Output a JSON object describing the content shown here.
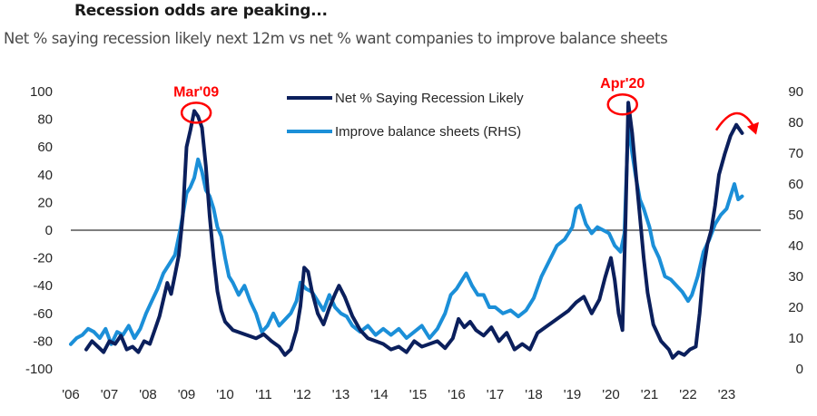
{
  "header": {
    "title": "Recession odds are peaking...",
    "subtitle": "Net % saying recession likely next 12m vs net % want companies to improve balance sheets"
  },
  "colors": {
    "recession_line": "#0b1f5c",
    "balance_line": "#1b8fd8",
    "annotation": "#ff0000",
    "zero_line": "#555555"
  },
  "chart_data": {
    "type": "line",
    "title": "Recession odds are peaking...",
    "subtitle": "Net % saying recession likely next 12m vs net % want companies to improve balance sheets",
    "xlabel": "",
    "ylabel_left": "",
    "ylabel_right": "",
    "x_ticks": [
      "'06",
      "'07",
      "'08",
      "'09",
      "'10",
      "'11",
      "'12",
      "'13",
      "'14",
      "'15",
      "'16",
      "'17",
      "'18",
      "'19",
      "'20",
      "'21",
      "'22",
      "'23"
    ],
    "x_tick_years": [
      2006,
      2007,
      2008,
      2009,
      2010,
      2011,
      2012,
      2013,
      2014,
      2015,
      2016,
      2017,
      2018,
      2019,
      2020,
      2021,
      2022,
      2023
    ],
    "xlim": [
      2006,
      2023.6
    ],
    "ylim_left": [
      -100,
      100
    ],
    "ylim_right": [
      0,
      90
    ],
    "y_ticks_left": [
      "100",
      "80",
      "60",
      "40",
      "20",
      "0",
      "-20",
      "-40",
      "-60",
      "-80",
      "-100"
    ],
    "y_tick_values_left": [
      100,
      80,
      60,
      40,
      20,
      0,
      -20,
      -40,
      -60,
      -80,
      -100
    ],
    "y_ticks_right": [
      "90",
      "80",
      "70",
      "60",
      "50",
      "40",
      "30",
      "20",
      "10",
      "0"
    ],
    "y_tick_values_right": [
      90,
      80,
      70,
      60,
      50,
      40,
      30,
      20,
      10,
      0
    ],
    "reference_line_left": 0,
    "grid": false,
    "legend": {
      "placement": "top-center",
      "entries": [
        {
          "label": "Net % Saying Recession Likely",
          "series": 0
        },
        {
          "label": "Improve balance sheets (RHS)",
          "series": 1
        }
      ]
    },
    "series": [
      {
        "name": "Net % Saying Recession Likely",
        "axis": "left",
        "x": [
          2006.4,
          2006.55,
          2006.7,
          2006.85,
          2007.0,
          2007.15,
          2007.3,
          2007.45,
          2007.6,
          2007.75,
          2007.9,
          2008.05,
          2008.2,
          2008.3,
          2008.4,
          2008.5,
          2008.6,
          2008.7,
          2008.8,
          2008.9,
          2009.0,
          2009.1,
          2009.2,
          2009.3,
          2009.4,
          2009.5,
          2009.6,
          2009.7,
          2009.8,
          2009.9,
          2010.0,
          2010.2,
          2010.4,
          2010.6,
          2010.8,
          2011.0,
          2011.2,
          2011.4,
          2011.55,
          2011.7,
          2011.85,
          2011.95,
          2012.05,
          2012.15,
          2012.25,
          2012.4,
          2012.55,
          2012.7,
          2012.85,
          2012.95,
          2013.1,
          2013.3,
          2013.5,
          2013.7,
          2013.9,
          2014.1,
          2014.3,
          2014.5,
          2014.7,
          2014.9,
          2015.1,
          2015.3,
          2015.5,
          2015.7,
          2015.9,
          2016.05,
          2016.2,
          2016.35,
          2016.5,
          2016.7,
          2016.9,
          2017.1,
          2017.3,
          2017.5,
          2017.7,
          2017.9,
          2018.1,
          2018.3,
          2018.5,
          2018.7,
          2018.9,
          2019.1,
          2019.3,
          2019.5,
          2019.7,
          2019.85,
          2020.0,
          2020.1,
          2020.2,
          2020.3,
          2020.38,
          2020.45,
          2020.55,
          2020.65,
          2020.75,
          2020.85,
          2020.95,
          2021.1,
          2021.3,
          2021.5,
          2021.6,
          2021.75,
          2021.9,
          2022.05,
          2022.2,
          2022.3,
          2022.4,
          2022.5,
          2022.6,
          2022.7,
          2022.8,
          2022.95,
          2023.1,
          2023.25,
          2023.4
        ],
        "y": [
          -86,
          -80,
          -84,
          -88,
          -80,
          -82,
          -76,
          -86,
          -84,
          -88,
          -80,
          -82,
          -70,
          -62,
          -50,
          -38,
          -46,
          -32,
          -18,
          10,
          60,
          72,
          86,
          82,
          74,
          46,
          10,
          -20,
          -44,
          -58,
          -66,
          -72,
          -74,
          -76,
          -78,
          -75,
          -80,
          -84,
          -90,
          -86,
          -72,
          -55,
          -27,
          -30,
          -44,
          -60,
          -68,
          -56,
          -46,
          -40,
          -48,
          -62,
          -72,
          -78,
          -80,
          -82,
          -86,
          -84,
          -88,
          -80,
          -84,
          -82,
          -80,
          -85,
          -78,
          -64,
          -70,
          -66,
          -72,
          -76,
          -70,
          -80,
          -74,
          -86,
          -82,
          -86,
          -74,
          -70,
          -66,
          -62,
          -58,
          -52,
          -48,
          -60,
          -50,
          -34,
          -20,
          -36,
          -60,
          -72,
          10,
          92,
          70,
          40,
          10,
          -20,
          -45,
          -68,
          -80,
          -86,
          -92,
          -88,
          -90,
          -86,
          -84,
          -60,
          -28,
          -10,
          0,
          18,
          40,
          55,
          68,
          76,
          70
        ]
      },
      {
        "name": "Improve balance sheets (RHS)",
        "axis": "right",
        "x": [
          2006.0,
          2006.15,
          2006.3,
          2006.45,
          2006.6,
          2006.75,
          2006.9,
          2007.05,
          2007.2,
          2007.35,
          2007.5,
          2007.65,
          2007.8,
          2007.95,
          2008.1,
          2008.25,
          2008.4,
          2008.55,
          2008.7,
          2008.85,
          2009.0,
          2009.1,
          2009.2,
          2009.3,
          2009.4,
          2009.5,
          2009.6,
          2009.7,
          2009.8,
          2009.9,
          2010.0,
          2010.1,
          2010.2,
          2010.35,
          2010.5,
          2010.65,
          2010.8,
          2010.95,
          2011.1,
          2011.25,
          2011.4,
          2011.55,
          2011.7,
          2011.85,
          2011.95,
          2012.1,
          2012.25,
          2012.4,
          2012.55,
          2012.7,
          2012.85,
          2013.0,
          2013.15,
          2013.3,
          2013.5,
          2013.7,
          2013.9,
          2014.1,
          2014.3,
          2014.5,
          2014.7,
          2014.9,
          2015.1,
          2015.3,
          2015.5,
          2015.7,
          2015.85,
          2016.0,
          2016.1,
          2016.25,
          2016.4,
          2016.55,
          2016.7,
          2016.85,
          2017.0,
          2017.2,
          2017.4,
          2017.6,
          2017.8,
          2018.0,
          2018.2,
          2018.4,
          2018.6,
          2018.8,
          2019.0,
          2019.1,
          2019.2,
          2019.35,
          2019.5,
          2019.65,
          2019.8,
          2019.95,
          2020.1,
          2020.25,
          2020.35,
          2020.45,
          2020.55,
          2020.65,
          2020.75,
          2020.85,
          2021.0,
          2021.1,
          2021.25,
          2021.4,
          2021.55,
          2021.7,
          2021.85,
          2022.0,
          2022.1,
          2022.25,
          2022.4,
          2022.55,
          2022.7,
          2022.85,
          2023.0,
          2023.1,
          2023.2,
          2023.3,
          2023.4
        ],
        "y": [
          8,
          10,
          11,
          13,
          12,
          10,
          13,
          8,
          12,
          11,
          14,
          10,
          13,
          18,
          22,
          26,
          31,
          34,
          37,
          46,
          57,
          59,
          62,
          68,
          64,
          58,
          56,
          52,
          46,
          43,
          36,
          30,
          28,
          24,
          27,
          22,
          18,
          12,
          14,
          18,
          14,
          16,
          18,
          22,
          28,
          26,
          25,
          22,
          19,
          24,
          20,
          18,
          17,
          14,
          12,
          14,
          11,
          13,
          11,
          13,
          10,
          12,
          14,
          10,
          13,
          18,
          24,
          26,
          28,
          31,
          27,
          24,
          24,
          20,
          20,
          18,
          19,
          17,
          19,
          23,
          30,
          35,
          40,
          42,
          46,
          52,
          53,
          47,
          44,
          46,
          45,
          44,
          40,
          38,
          44,
          80,
          70,
          62,
          55,
          52,
          46,
          40,
          36,
          30,
          29,
          27,
          25,
          22,
          24,
          30,
          38,
          42,
          47,
          50,
          52,
          56,
          60,
          55,
          56
        ]
      }
    ],
    "annotations": [
      {
        "text": "Mar'09",
        "x": 2009.25,
        "y": 86,
        "axis": "left",
        "shape": "circle"
      },
      {
        "text": "Apr'20",
        "x": 2020.3,
        "y": 92,
        "axis": "left",
        "shape": "circle"
      },
      {
        "text": "",
        "x": 2023.2,
        "y": 78,
        "axis": "left",
        "shape": "curved-arrow-down"
      }
    ]
  }
}
